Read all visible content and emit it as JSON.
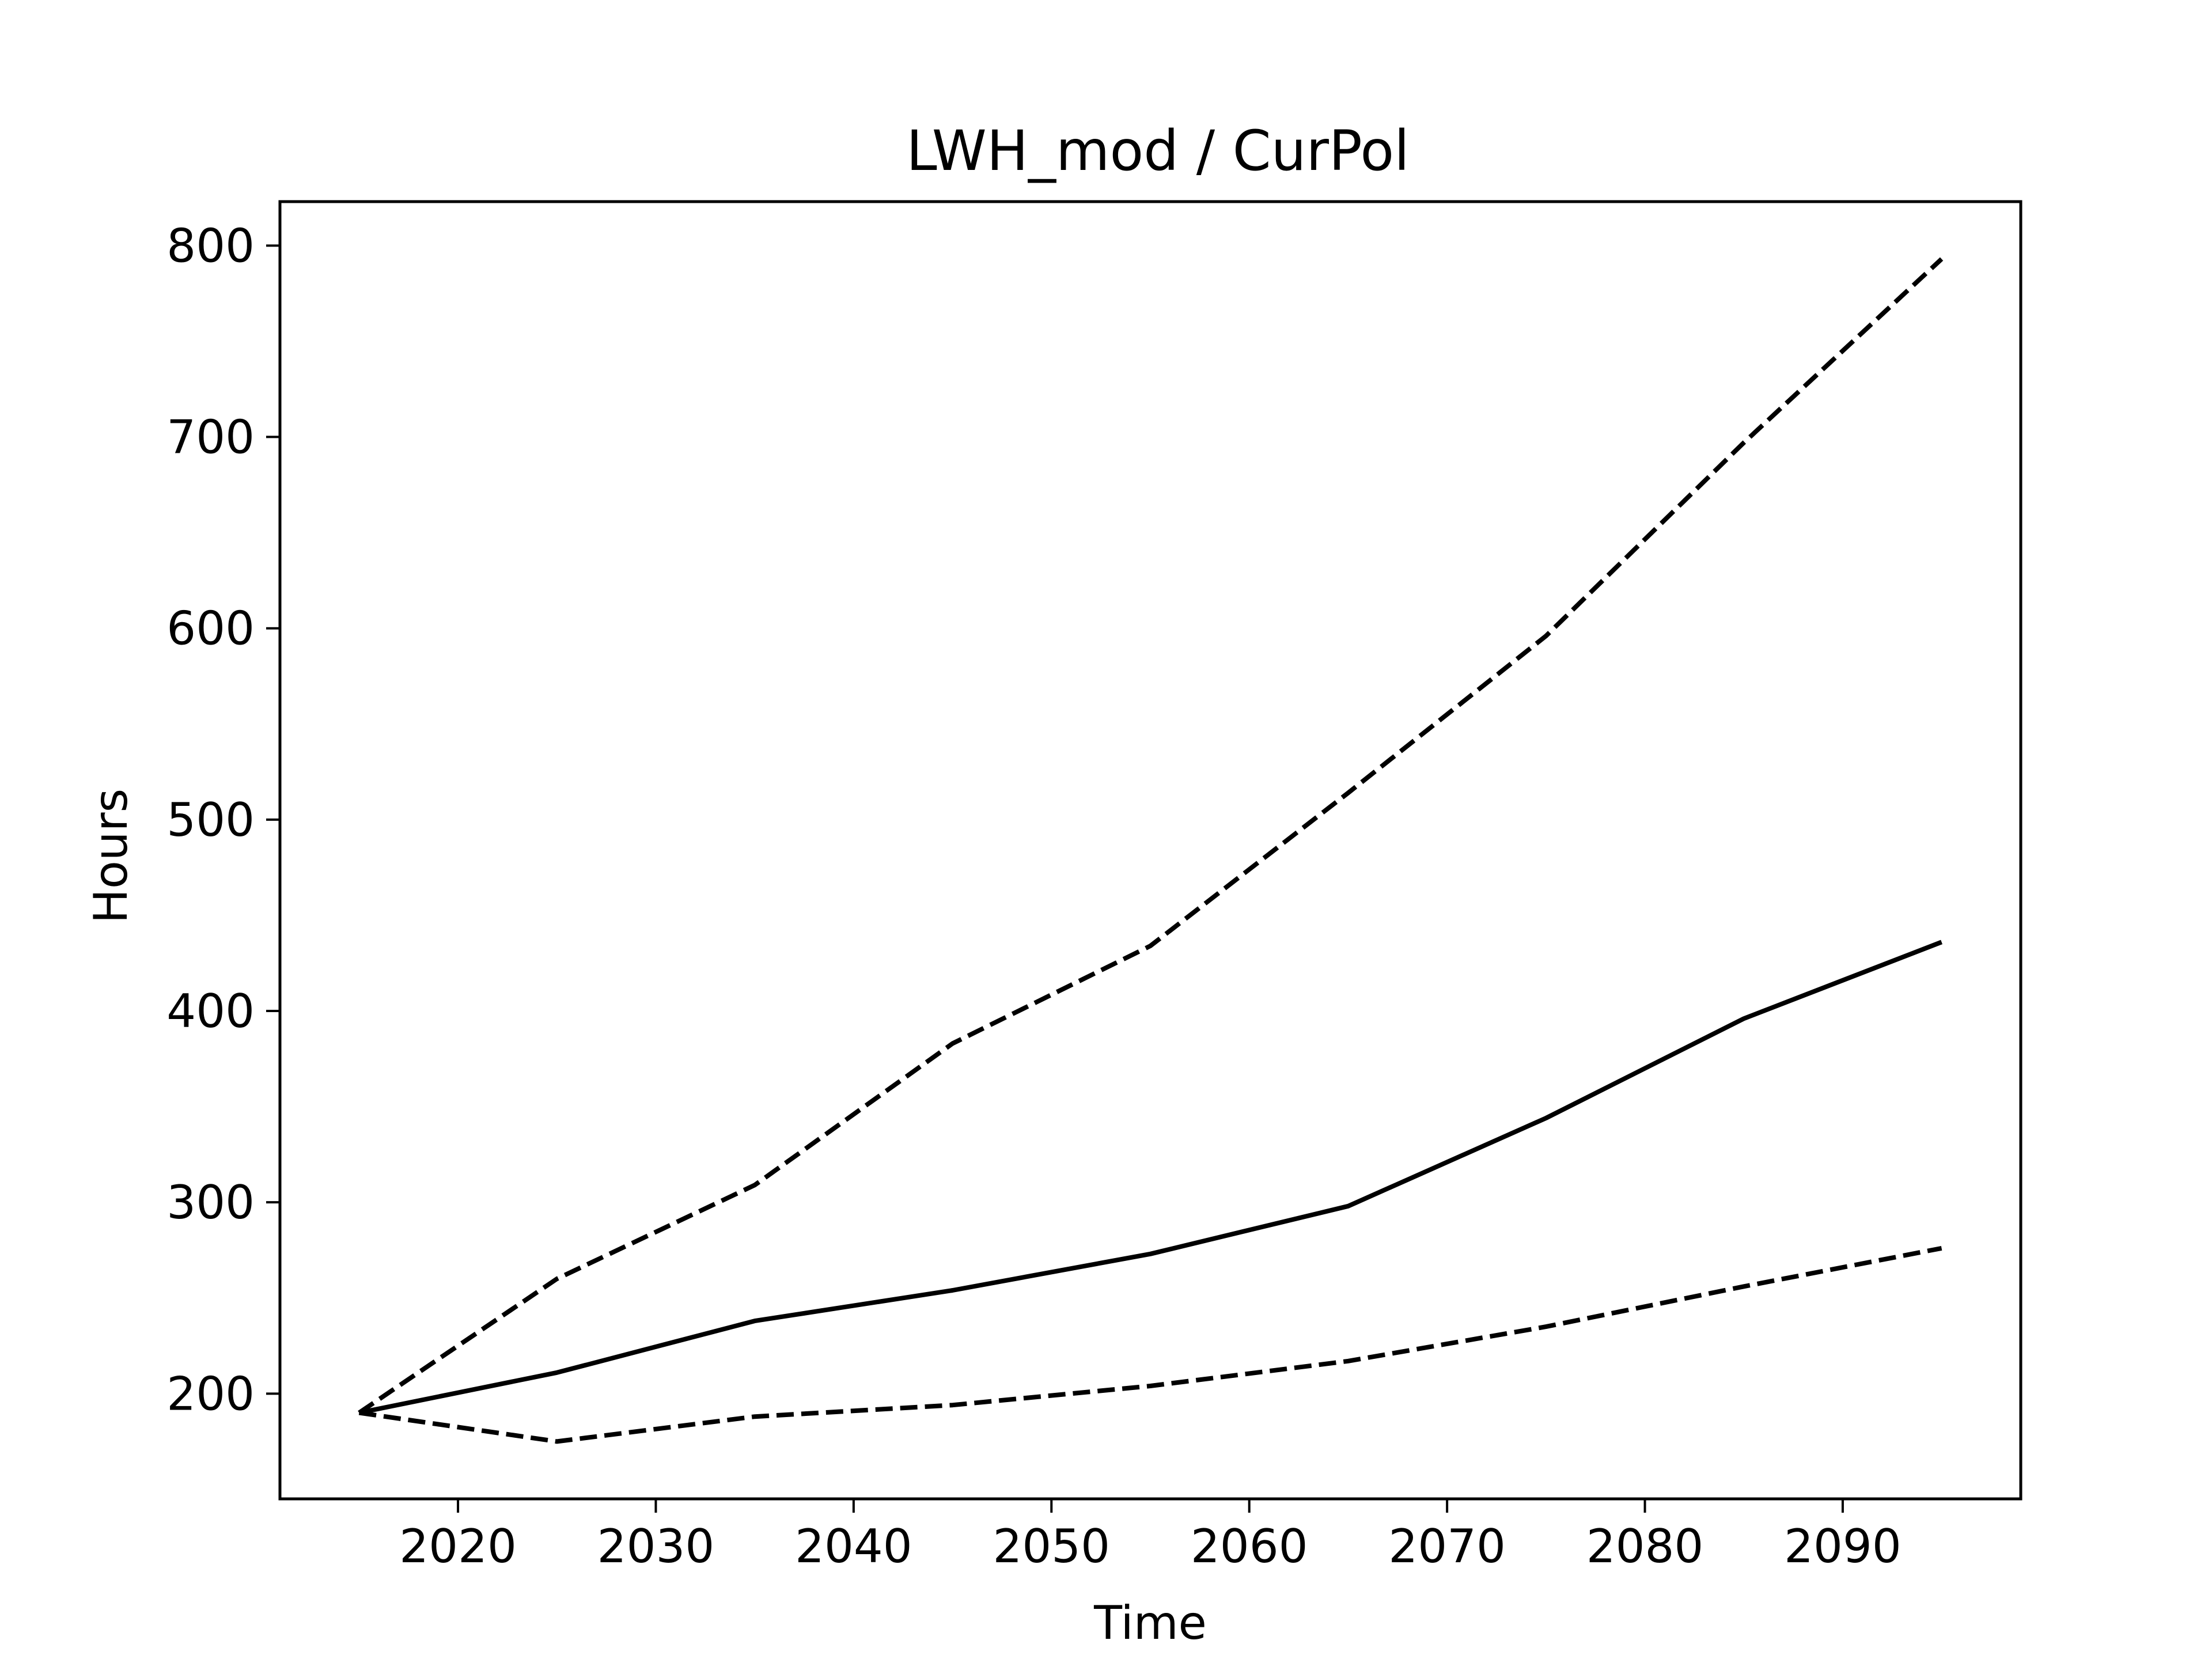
{
  "chart_data": {
    "type": "line",
    "title": "LWH_mod / CurPol",
    "xlabel": "Time",
    "ylabel": "Hours",
    "xlim": [
      2011,
      2099
    ],
    "ylim": [
      145,
      823
    ],
    "xticks": [
      2020,
      2030,
      2040,
      2050,
      2060,
      2070,
      2080,
      2090
    ],
    "yticks": [
      200,
      300,
      400,
      500,
      600,
      700,
      800
    ],
    "grid": false,
    "x": [
      2015,
      2025,
      2035,
      2045,
      2055,
      2065,
      2075,
      2085,
      2095
    ],
    "series": [
      {
        "style": "solid",
        "color": "#000000",
        "values": [
          190,
          211,
          238,
          254,
          273,
          298,
          344,
          396,
          436
        ]
      },
      {
        "style": "dashed",
        "color": "#000000",
        "values": [
          190,
          260,
          309,
          383,
          434,
          514,
          596,
          697,
          793
        ]
      },
      {
        "style": "dashed",
        "color": "#000000",
        "values": [
          190,
          175,
          188,
          194,
          204,
          217,
          235,
          256,
          276
        ]
      }
    ]
  }
}
